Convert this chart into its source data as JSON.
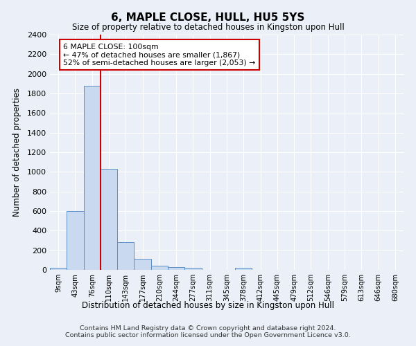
{
  "title": "6, MAPLE CLOSE, HULL, HU5 5YS",
  "subtitle": "Size of property relative to detached houses in Kingston upon Hull",
  "xlabel": "Distribution of detached houses by size in Kingston upon Hull",
  "ylabel": "Number of detached properties",
  "bar_labels": [
    "9sqm",
    "43sqm",
    "76sqm",
    "110sqm",
    "143sqm",
    "177sqm",
    "210sqm",
    "244sqm",
    "277sqm",
    "311sqm",
    "345sqm",
    "378sqm",
    "412sqm",
    "445sqm",
    "479sqm",
    "512sqm",
    "546sqm",
    "579sqm",
    "613sqm",
    "646sqm",
    "680sqm"
  ],
  "bar_values": [
    20,
    600,
    1880,
    1030,
    285,
    110,
    45,
    30,
    20,
    0,
    0,
    20,
    0,
    0,
    0,
    0,
    0,
    0,
    0,
    0,
    0
  ],
  "bar_color": "#c9d9f0",
  "bar_edge_color": "#5b8ec4",
  "vline_x_index": 2,
  "vline_color": "#cc0000",
  "annotation_title": "6 MAPLE CLOSE: 100sqm",
  "annotation_line1": "← 47% of detached houses are smaller (1,867)",
  "annotation_line2": "52% of semi-detached houses are larger (2,053) →",
  "annotation_box_color": "#ffffff",
  "annotation_box_edge": "#cc0000",
  "ylim": [
    0,
    2400
  ],
  "yticks": [
    0,
    200,
    400,
    600,
    800,
    1000,
    1200,
    1400,
    1600,
    1800,
    2000,
    2200,
    2400
  ],
  "footer_line1": "Contains HM Land Registry data © Crown copyright and database right 2024.",
  "footer_line2": "Contains public sector information licensed under the Open Government Licence v3.0.",
  "bg_color": "#eaeff8",
  "plot_bg_color": "#eaeff8"
}
